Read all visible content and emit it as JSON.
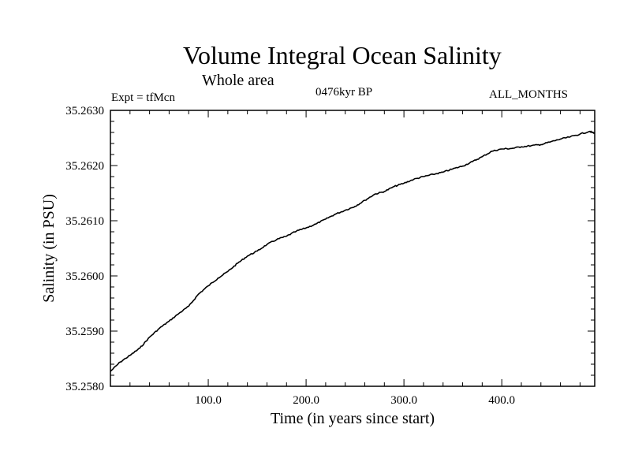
{
  "header": {
    "title": "Volume Integral Ocean Salinity",
    "subtitle": "Whole area",
    "experiment": "Expt = tfMcn",
    "period": "0476kyr BP",
    "months": "ALL_MONTHS"
  },
  "chart_data": {
    "type": "line",
    "title": "Volume Integral Ocean Salinity",
    "xlabel": "Time (in years since start)",
    "ylabel": "Salinity (in PSU)",
    "xlim": [
      0,
      495
    ],
    "ylim": [
      35.258,
      35.263
    ],
    "xticks": [
      100,
      200,
      300,
      400
    ],
    "xtick_labels": [
      "100.0",
      "200.0",
      "300.0",
      "400.0"
    ],
    "yticks": [
      35.258,
      35.259,
      35.26,
      35.261,
      35.262,
      35.263
    ],
    "ytick_labels": [
      "35.2580",
      "35.2590",
      "35.2600",
      "35.2610",
      "35.2620",
      "35.2630"
    ],
    "grid": false,
    "series": [
      {
        "x": [
          0,
          10,
          20,
          30,
          40,
          50,
          60,
          70,
          80,
          90,
          100,
          110,
          120,
          130,
          140,
          150,
          160,
          170,
          180,
          190,
          200,
          210,
          220,
          230,
          240,
          250,
          260,
          270,
          280,
          290,
          300,
          310,
          320,
          330,
          340,
          350,
          360,
          370,
          380,
          390,
          400,
          410,
          420,
          430,
          440,
          450,
          460,
          470,
          480,
          490,
          495
        ],
        "y": [
          35.25827,
          35.25844,
          35.25856,
          35.25869,
          35.25889,
          35.25905,
          35.25918,
          35.25932,
          35.25945,
          35.25967,
          35.25982,
          35.25996,
          35.26008,
          35.26023,
          35.26036,
          35.26045,
          35.26057,
          35.26066,
          35.26072,
          35.26081,
          35.26087,
          35.26094,
          35.26103,
          35.26112,
          35.26119,
          35.26126,
          35.26137,
          35.26148,
          35.26153,
          35.26162,
          35.26168,
          35.26175,
          35.2618,
          35.26184,
          35.26188,
          35.26194,
          35.26199,
          35.26207,
          35.26216,
          35.26226,
          35.2623,
          35.26231,
          35.26234,
          35.26236,
          35.26238,
          35.26243,
          35.26248,
          35.26252,
          35.26257,
          35.26262,
          35.26258
        ]
      }
    ]
  }
}
